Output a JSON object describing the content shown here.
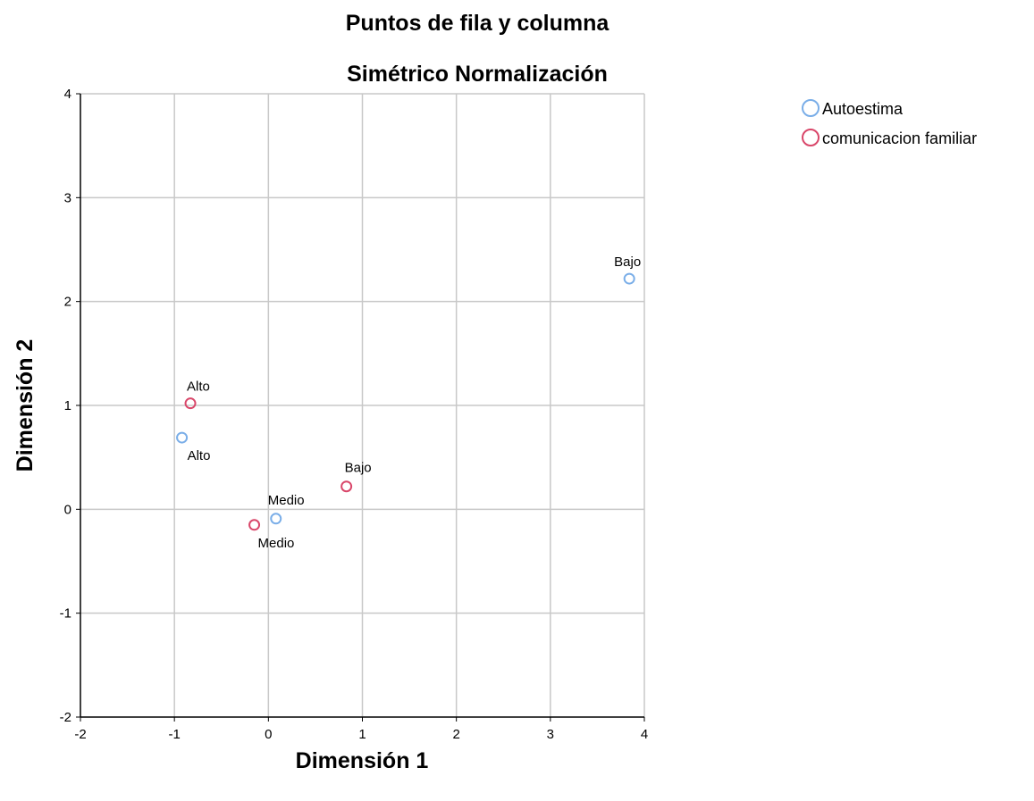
{
  "chart_data": {
    "type": "scatter",
    "title": "Puntos de fila y columna",
    "subtitle": "Simétrico Normalización",
    "xlabel": "Dimensión 1",
    "ylabel": "Dimensión 2",
    "xlim": [
      -2,
      4
    ],
    "ylim": [
      -2,
      4
    ],
    "xticks": [
      -2,
      -1,
      0,
      1,
      2,
      3,
      4
    ],
    "yticks": [
      -2,
      -1,
      0,
      1,
      2,
      3,
      4
    ],
    "grid": true,
    "legend_position": "top-right",
    "series": [
      {
        "name": "Autoestima",
        "color": "#7aaee8",
        "points": [
          {
            "label": "Bajo",
            "x": 3.84,
            "y": 2.22
          },
          {
            "label": "Alto",
            "x": -0.92,
            "y": 0.69
          },
          {
            "label": "Medio",
            "x": 0.08,
            "y": -0.09
          }
        ]
      },
      {
        "name": "comunicacion familiar",
        "color": "#d9476a",
        "points": [
          {
            "label": "Alto",
            "x": -0.83,
            "y": 1.02
          },
          {
            "label": "Bajo",
            "x": 0.83,
            "y": 0.22
          },
          {
            "label": "Medio",
            "x": -0.15,
            "y": -0.15
          }
        ]
      }
    ]
  }
}
